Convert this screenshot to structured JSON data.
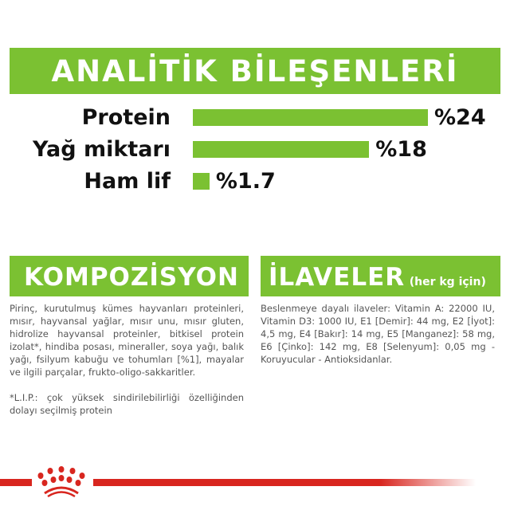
{
  "title": "ANALİTİK BİLEŞENLERİ",
  "nutrients": [
    {
      "label": "Protein",
      "value": "%24",
      "percent": 24
    },
    {
      "label": "Yağ miktarı",
      "value": "%18",
      "percent": 18
    },
    {
      "label": "Ham lif",
      "value": "%1.7",
      "percent": 1.7
    }
  ],
  "composition": {
    "title": "KOMPOZİSYON",
    "text": "Pirinç, kurutulmuş kümes hayvanları proteinleri, mısır, hayvansal yağlar, mısır unu, mısır gluten, hidrolize hayvansal proteinler, bitkisel protein izolat*, hindiba posası, mineraller, soya yağı, balık yağı, fsilyum kabuğu ve tohumları [%1], mayalar ve ilgili parçalar, frukto-oligo-sakkaritler.",
    "note": "*L.I.P.: çok yüksek sindirilebilirliği özelliğinden dolayı seçilmiş protein"
  },
  "additives": {
    "title": "İLAVELER",
    "subtitle": "(her kg için)",
    "text": "Beslenmeye dayalı ilaveler: Vitamin A: 22000 IU, Vitamin D3: 1000 IU, E1 [Demir]: 44 mg, E2 [İyot]: 4,5 mg, E4 [Bakır]: 14 mg, E5 [Manganez]: 58 mg, E6 [Çinko]: 142 mg, E8 [Selenyum]: 0,05 mg - Koruyucular - Antioksidanlar."
  },
  "colors": {
    "accent": "#7bc132",
    "brand_red": "#d8261f"
  },
  "logo": "royal-canin-crown"
}
